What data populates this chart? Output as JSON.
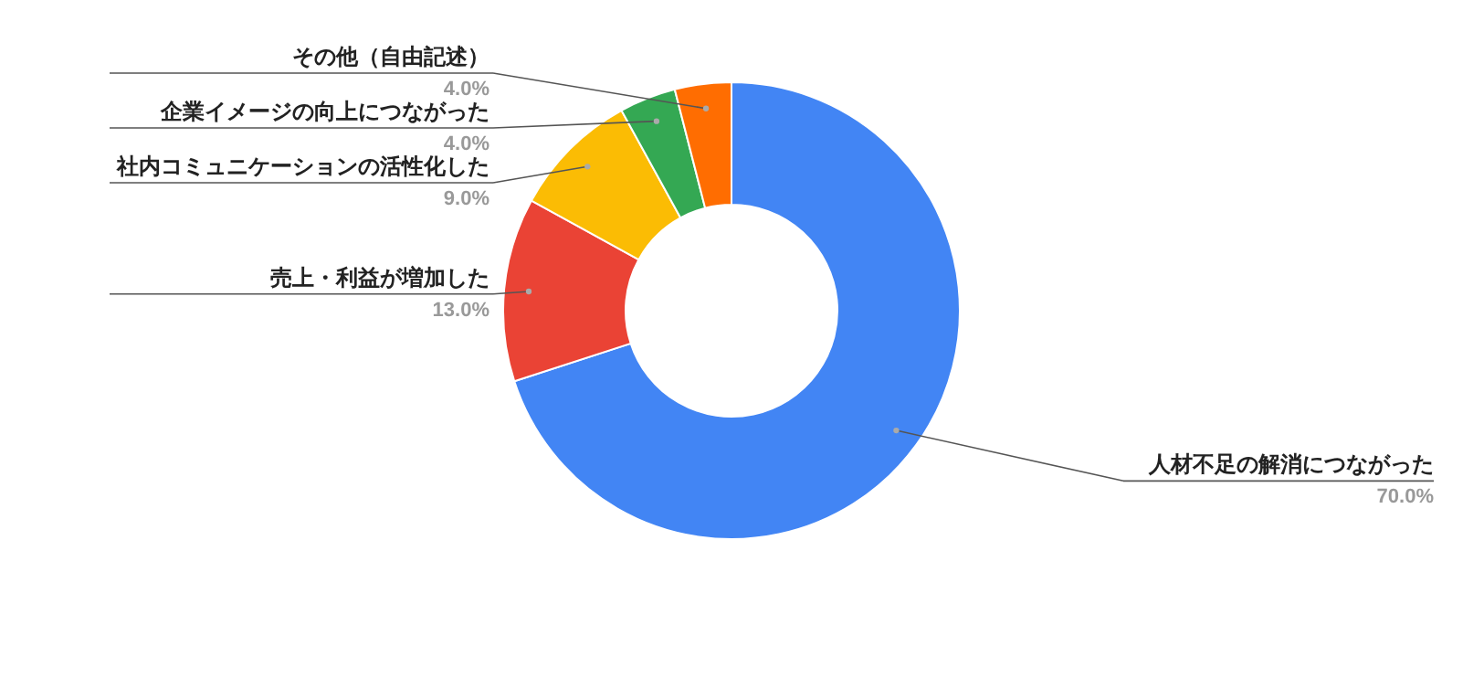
{
  "chart_data": {
    "type": "donut",
    "categories": [
      "人材不足の解消につながった",
      "売上・利益が増加した",
      "社内コミュニケーションの活性化した",
      "企業イメージの向上につながった",
      "その他（自由記述）"
    ],
    "values": [
      70,
      13,
      9,
      4,
      4
    ],
    "colors": [
      "#4285f4",
      "#ea4335",
      "#fbbc04",
      "#34a853",
      "#ff6d01"
    ],
    "value_labels": [
      "70.0%",
      "13.0%",
      "9.0%",
      "4.0%",
      "4.0%"
    ]
  }
}
